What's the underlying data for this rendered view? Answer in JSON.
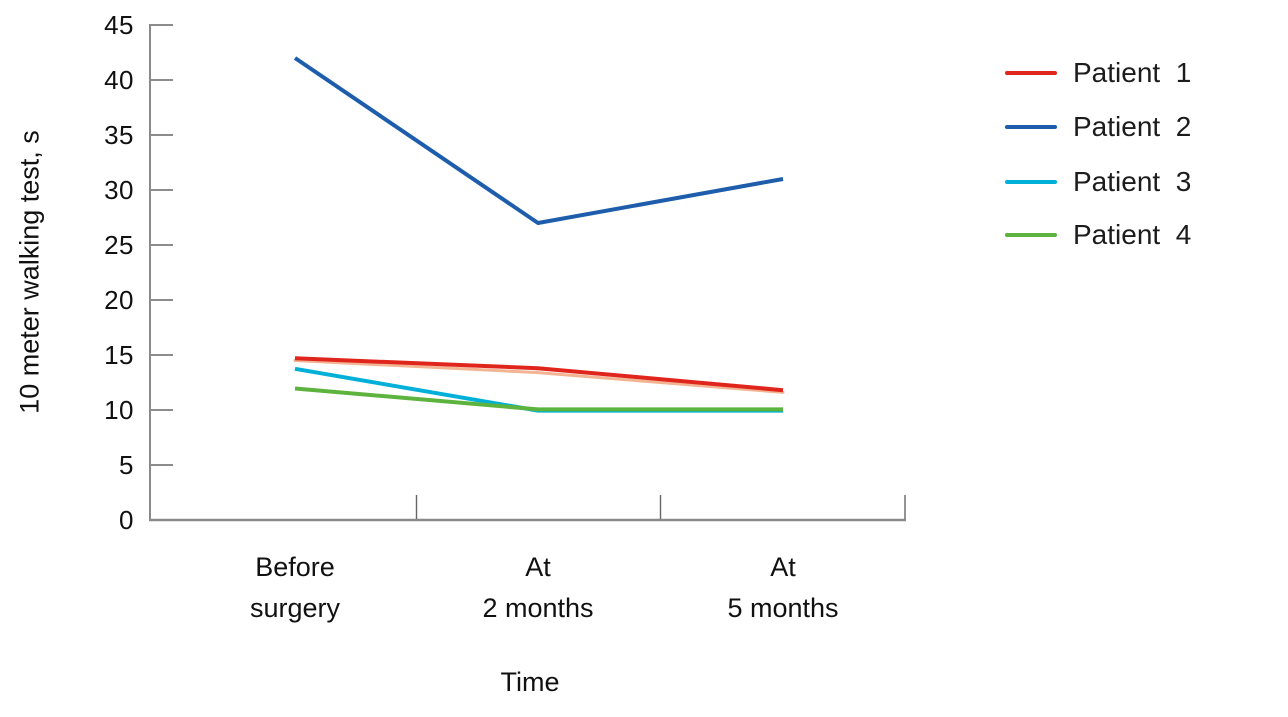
{
  "chart_data": {
    "type": "line",
    "title": "",
    "ylabel": "10 meter walking test, s",
    "xlabel": "Time",
    "categories": [
      "Before surgery",
      "At 2 months",
      "At 5 months"
    ],
    "categories_display": [
      "Before\nsurgery",
      "At\n2 months",
      "At\n5 months"
    ],
    "yticks": [
      0,
      5,
      10,
      15,
      20,
      25,
      30,
      35,
      40,
      45
    ],
    "ylim": [
      0,
      45
    ],
    "grid": false,
    "legend_position": "right",
    "series": [
      {
        "name": "Patient  1",
        "color": "#e0261c",
        "values": [
          14.7,
          13.8,
          11.8
        ]
      },
      {
        "name": "Patient  2",
        "color": "#1d5dab",
        "values": [
          42,
          27,
          31
        ]
      },
      {
        "name": "Patient  3",
        "color": "#00b0d8",
        "values": [
          13.8,
          10,
          10
        ]
      },
      {
        "name": "Patient  4",
        "color": "#5cb33e",
        "values": [
          11.9,
          10,
          10
        ]
      }
    ],
    "series1_shadow": {
      "color": "#f2b493",
      "values": [
        14.5,
        13.4,
        11.6
      ]
    }
  },
  "colors": {
    "background": "#ffffff",
    "axis": "#8a8a8a",
    "tick": "#666666",
    "text": "#111111"
  }
}
